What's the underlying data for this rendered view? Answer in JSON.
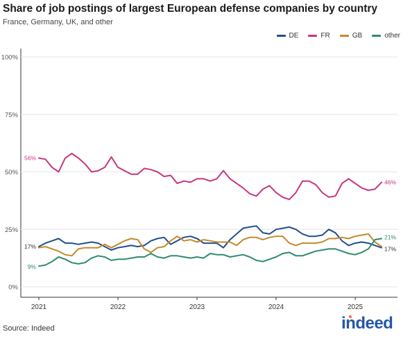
{
  "title": "Share of job postings of largest European defense companies by country",
  "subtitle": "France, Germany, UK, and other",
  "source": "Source: Indeed",
  "logo": "indeed",
  "chart_data": {
    "type": "line",
    "title": "Share of job postings of largest European defense companies by country",
    "subtitle": "France, Germany, UK, and other",
    "xlabel": "",
    "ylabel": "",
    "x_ticks": [
      "2021",
      "2022",
      "2023",
      "2024",
      "2025"
    ],
    "y_ticks": [
      "0%",
      "25%",
      "50%",
      "75%",
      "100%"
    ],
    "y_tick_values": [
      0,
      25,
      50,
      75,
      100
    ],
    "ylim": [
      0,
      100
    ],
    "legend_position": "top-right",
    "grid": "horizontal",
    "x_start": "2021-01",
    "series": [
      {
        "name": "DE",
        "color": "#1f4e8c",
        "end_label": "17%",
        "values": [
          17.5,
          19,
          20,
          21,
          19,
          19,
          18.5,
          19,
          19.5,
          19,
          17.5,
          16,
          17,
          17.5,
          18,
          17.5,
          18,
          20,
          21,
          21.5,
          18.5,
          20,
          21.5,
          22,
          21,
          19,
          19,
          19,
          17,
          20.5,
          23,
          25.5,
          26,
          26.5,
          23.5,
          23,
          25,
          25.5,
          26,
          25,
          23,
          22,
          22,
          22.5,
          25,
          23.5,
          20,
          18,
          19,
          19.5,
          19,
          18,
          17
        ]
      },
      {
        "name": "FR",
        "color": "#c8357f",
        "start_label": "56%",
        "end_label": "46%",
        "values": [
          56,
          55.5,
          52,
          50,
          56,
          58,
          56,
          53.5,
          50,
          50.5,
          52,
          56.5,
          52,
          50.5,
          49,
          49,
          51.5,
          51,
          50,
          48,
          48.5,
          45,
          46,
          45.5,
          47,
          47,
          46,
          47,
          50.5,
          47,
          45,
          43,
          40.5,
          39.5,
          42.5,
          44,
          41,
          39,
          38,
          41,
          46,
          46,
          44.5,
          41,
          39,
          39.5,
          45,
          47,
          45,
          43,
          42,
          42.5,
          45.5
        ]
      },
      {
        "name": "GB",
        "color": "#c4892b",
        "values": [
          17,
          17.5,
          16.5,
          15.5,
          14,
          13.5,
          16.5,
          17,
          17,
          17,
          18.5,
          17,
          18.5,
          20,
          21,
          20.5,
          16.5,
          15,
          17,
          17.5,
          20,
          22,
          20,
          20.5,
          19.5,
          20.5,
          20,
          19.5,
          19.5,
          19.5,
          18,
          20.5,
          21.5,
          21.5,
          20.5,
          21.5,
          22,
          22,
          19,
          18,
          19,
          19,
          19,
          19.5,
          21,
          21,
          21.5,
          21,
          22,
          22.5,
          23,
          19.5,
          17.5
        ]
      },
      {
        "name": "other",
        "color": "#2e8b6b",
        "start_label": "9%",
        "end_label": "21%",
        "values": [
          9,
          9.5,
          11,
          13,
          12,
          10.5,
          10,
          10.5,
          12.5,
          13.5,
          13,
          11.5,
          12,
          12,
          12.5,
          13,
          13,
          14.5,
          13,
          12.5,
          13.5,
          13.5,
          13,
          12.5,
          13,
          12.5,
          14.5,
          14,
          14,
          13,
          13.5,
          14,
          13,
          11.5,
          11,
          12,
          13,
          14.5,
          15,
          13.5,
          13.5,
          14.5,
          15.5,
          16,
          16.5,
          16.5,
          15.5,
          14.5,
          14,
          15,
          16.5,
          20.5,
          21
        ]
      }
    ]
  }
}
